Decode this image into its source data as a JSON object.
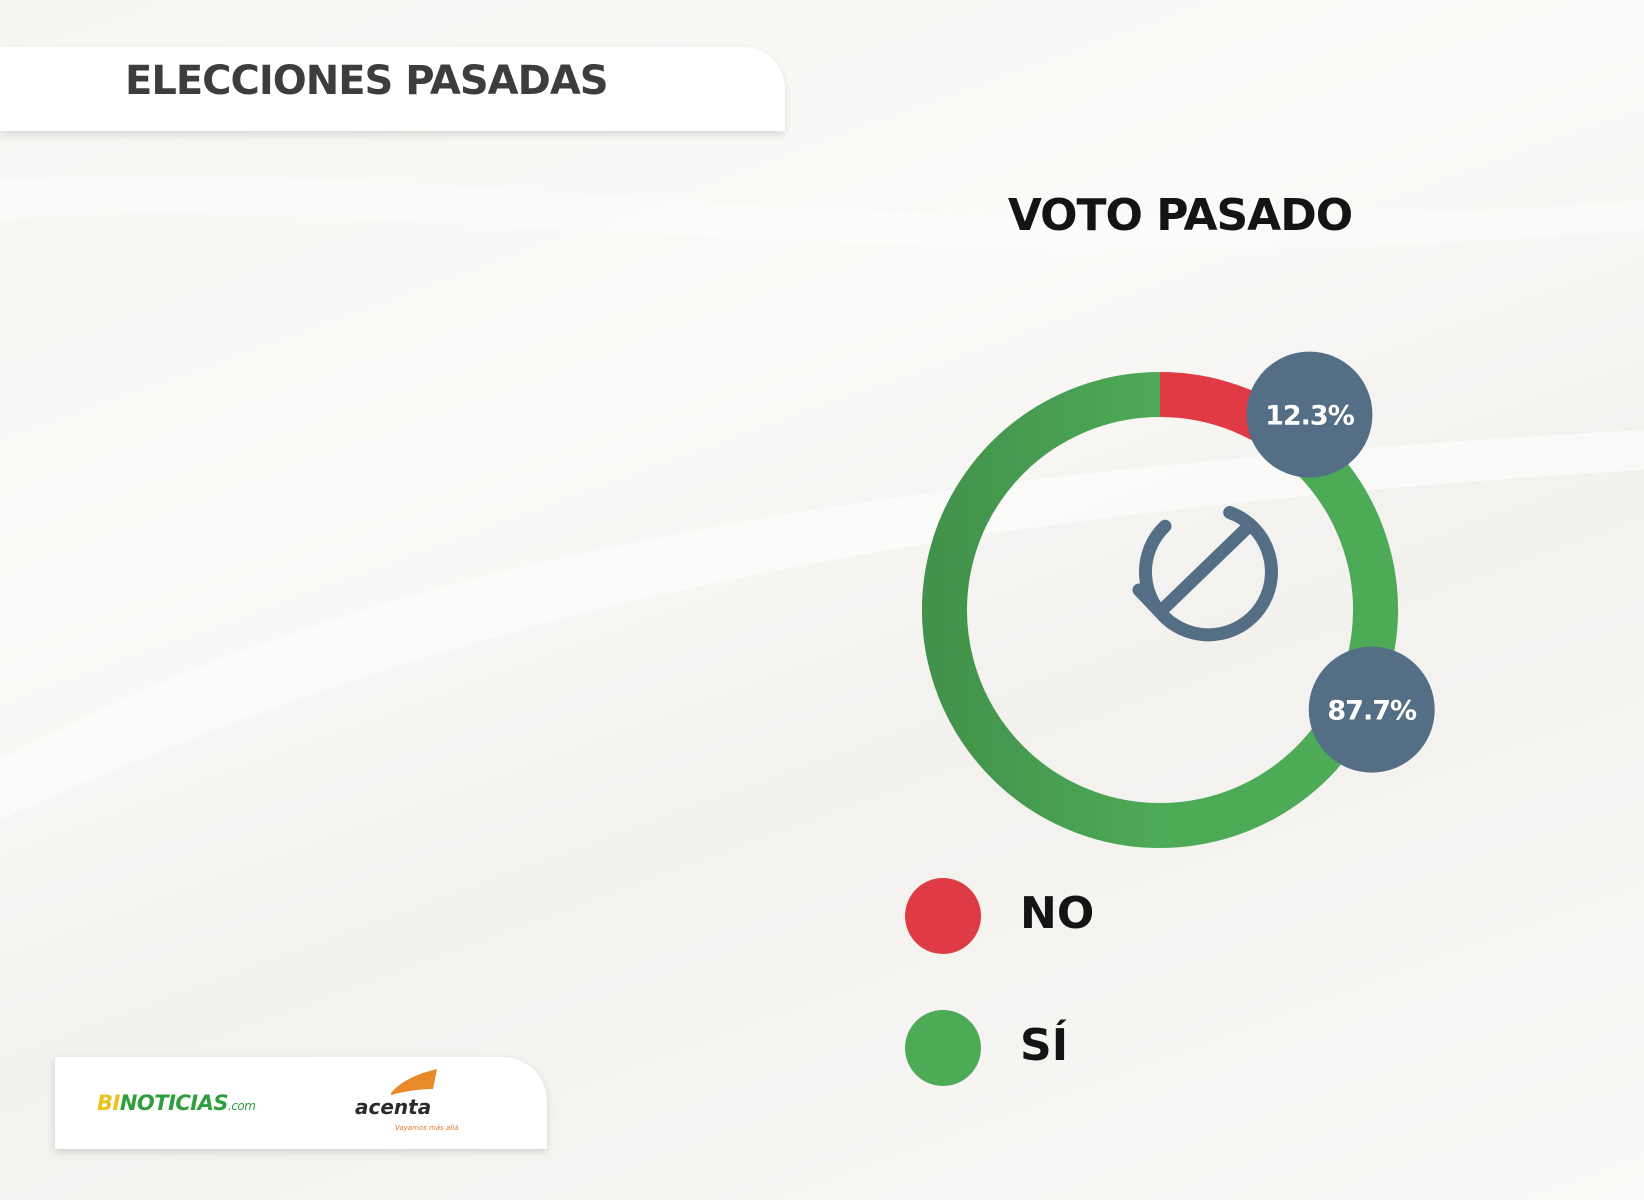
{
  "header": {
    "title": "ELECCIONES PASADAS"
  },
  "chart_data": {
    "type": "pie",
    "title": "VOTO PASADO",
    "categories": [
      "NO",
      "SÍ"
    ],
    "values": [
      12.3,
      87.7
    ],
    "labels": [
      "12.3%",
      "87.7%"
    ],
    "colors": [
      "#e03a45",
      "#4daa57"
    ],
    "legend": "bottom"
  },
  "center_icon": "check-circle-icon",
  "colors": {
    "badge": "#546f85",
    "icon": "#546f85"
  },
  "logos": {
    "binoticias": {
      "part1": "BI",
      "part2": "NOTICIAS",
      "suffix": ".com"
    },
    "acenta": {
      "word": "acenta",
      "tagline": "Vayamos más allá"
    }
  }
}
